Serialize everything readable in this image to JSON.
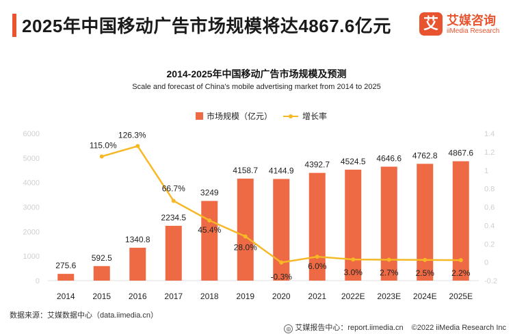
{
  "header": {
    "title": "2025年中国移动广告市场规模将达4867.6亿元",
    "accent_color": "#e8542f"
  },
  "logo": {
    "mark": "艾",
    "name_cn": "艾媒咨询",
    "name_en": "iiMedia Research",
    "color": "#e8542f"
  },
  "chart_data": {
    "type": "bar",
    "title": "2014-2025年中国移动广告市场规模及预测",
    "subtitle": "Scale and forecast of China's mobile advertising market from 2014 to 2025",
    "categories": [
      "2014",
      "2015",
      "2016",
      "2017",
      "2018",
      "2019",
      "2020",
      "2021",
      "2022E",
      "2023E",
      "2024E",
      "2025E"
    ],
    "series": [
      {
        "name": "市场规模（亿元）",
        "type": "bar",
        "axis": "left",
        "color": "#ee6a45",
        "values": [
          275.6,
          592.5,
          1340.8,
          2234.5,
          3249,
          4158.7,
          4144.9,
          4392.7,
          4524.5,
          4646.6,
          4762.8,
          4867.6
        ],
        "labels": [
          "275.6",
          "592.5",
          "1340.8",
          "2234.5",
          "3249",
          "4158.7",
          "4144.9",
          "4392.7",
          "4524.5",
          "4646.6",
          "4762.8",
          "4867.6"
        ]
      },
      {
        "name": "增长率",
        "type": "line",
        "axis": "right",
        "color": "#f6b824",
        "values": [
          null,
          1.15,
          1.263,
          0.667,
          0.454,
          0.28,
          -0.003,
          0.06,
          0.03,
          0.027,
          0.025,
          0.022
        ],
        "labels": [
          null,
          "115.0%",
          "126.3%",
          "66.7%",
          "45.4%",
          "28.0%",
          "-0.3%",
          "6.0%",
          "3.0%",
          "2.7%",
          "2.5%",
          "2.2%"
        ]
      }
    ],
    "y_left": {
      "ticks": [
        "0",
        "1000",
        "2000",
        "3000",
        "4000",
        "5000",
        "6000"
      ],
      "range": [
        0,
        6000
      ]
    },
    "y_right": {
      "ticks": [
        "-0.2",
        "0",
        "0.2",
        "0.4",
        "0.6",
        "0.8",
        "1",
        "1.2",
        "1.4"
      ],
      "range": [
        -0.2,
        1.4
      ]
    },
    "legend_position": "top-center",
    "grid": false
  },
  "footer": {
    "source": "数据来源：艾媒数据中心（data.iimedia.cn）",
    "report_icon": "globe-icon",
    "report_site": "艾媒报告中心：report.iimedia.cn",
    "copyright": "©2022  iiMedia Research  Inc"
  }
}
